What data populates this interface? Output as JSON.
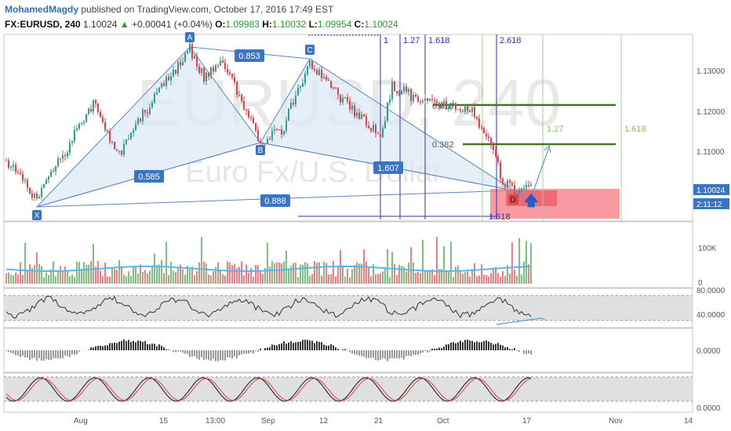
{
  "header": {
    "author": "MohamedMagdy",
    "published_text": "published on TradingView.com, October 17, 2016 17:49 EST",
    "symbol": "FX:EURUSD, 240",
    "last": "1.10024",
    "change": "+0.00041 (+0.04%)",
    "open_label": "O:",
    "open": "1.09983",
    "high_label": "H:",
    "high": "1.10032",
    "low_label": "L:",
    "low": "1.09954",
    "close_label": "C:",
    "close": "1.10024"
  },
  "watermark": {
    "symbol": "EURUSD, 240",
    "name": "Euro Fx/U.S. Dollar"
  },
  "price_axis": {
    "ticks": [
      "1.13000",
      "1.12000",
      "1.11000",
      "1.10000"
    ],
    "current_price": "1.10024",
    "countdown": "2:11:12"
  },
  "volume_axis": {
    "ticks": [
      "100K",
      "0"
    ]
  },
  "rsi_axis": {
    "ticks": [
      "80.0000",
      "40.0000"
    ]
  },
  "macd_axis": {
    "ticks": [
      "0.0000"
    ]
  },
  "stoch_axis": {
    "ticks": [
      "0.0000"
    ]
  },
  "time_axis": {
    "ticks": [
      "Aug",
      "15",
      "13:00",
      "Sep",
      "12",
      "21",
      "Oct",
      "17",
      "Nov",
      "14"
    ]
  },
  "pattern": {
    "points": [
      "X",
      "A",
      "B",
      "C",
      "D"
    ],
    "ratios": {
      "xb": "0.585",
      "ac": "0.853",
      "bd": "1.607",
      "xd": "0.888"
    }
  },
  "fib_time_labels": [
    "1",
    "1.27",
    "1.618",
    "2.618"
  ],
  "fib_price_labels": [
    "0.618",
    "0.382",
    "1.618"
  ],
  "projection_labels": [
    "1.27",
    "1.618"
  ],
  "colors": {
    "up_candle": "#2e9e8f",
    "down_candle": "#e0424a",
    "pattern_line": "#5b86c5",
    "pattern_fill": "#dbe7f5",
    "target_zone": "#f7808a",
    "fib_green": "#3e7a1e",
    "projection_green": "#a8d08d",
    "fib_blue": "#3030b0",
    "label_bg": "#3a74c4"
  },
  "chart_data": {
    "type": "candlestick",
    "symbol": "EURUSD",
    "timeframe": "240",
    "ylim": [
      1.0955,
      1.1365
    ],
    "pattern_points": [
      {
        "label": "X",
        "price": 1.0965
      },
      {
        "label": "A",
        "price": 1.1365
      },
      {
        "label": "B",
        "price": 1.1125
      },
      {
        "label": "C",
        "price": 1.1325
      },
      {
        "label": "D",
        "price": 1.0995
      }
    ],
    "horizontal_levels": [
      {
        "label": "0.618",
        "price": 1.1212
      },
      {
        "label": "0.382",
        "price": 1.1117
      }
    ],
    "current_price": 1.10024
  }
}
